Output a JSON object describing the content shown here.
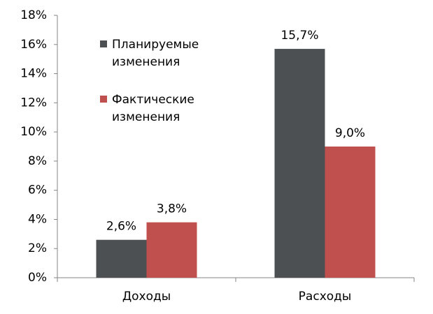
{
  "chart_data": {
    "type": "bar",
    "categories": [
      "Доходы",
      "Расходы"
    ],
    "series": [
      {
        "name": "Планируемые изменения",
        "color": "#4d5053",
        "values": [
          2.6,
          15.7
        ],
        "value_labels": [
          "2,6%",
          "15,7%"
        ]
      },
      {
        "name": "Фактические изменения",
        "color": "#c0504d",
        "values": [
          3.8,
          9.0
        ],
        "value_labels": [
          "3,8%",
          "9,0%"
        ]
      }
    ],
    "ylim": [
      0,
      18
    ],
    "yticks": [
      {
        "value": 0,
        "label": "0%"
      },
      {
        "value": 2,
        "label": "2%"
      },
      {
        "value": 4,
        "label": "4%"
      },
      {
        "value": 6,
        "label": "6%"
      },
      {
        "value": 8,
        "label": "8%"
      },
      {
        "value": 10,
        "label": "10%"
      },
      {
        "value": 12,
        "label": "12%"
      },
      {
        "value": 14,
        "label": "14%"
      },
      {
        "value": 16,
        "label": "16%"
      },
      {
        "value": 18,
        "label": "18%"
      }
    ],
    "grid": false,
    "legend": "upper-left"
  }
}
